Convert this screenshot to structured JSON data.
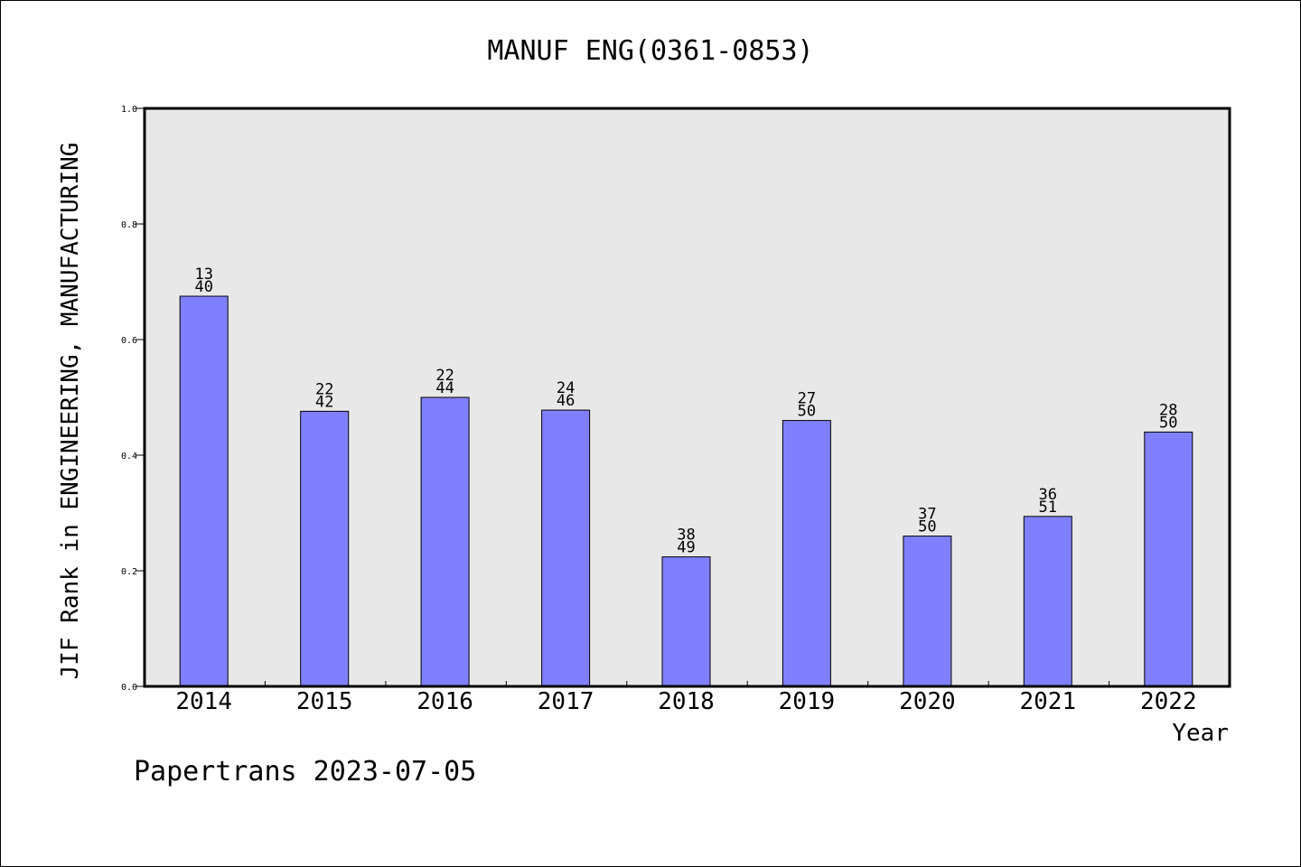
{
  "chart_data": {
    "type": "bar",
    "title": "MANUF ENG(0361-0853)",
    "xlabel": "Year",
    "ylabel": "JIF Rank in ENGINEERING, MANUFACTURING",
    "footer": "Papertrans 2023-07-05",
    "categories": [
      "2014",
      "2015",
      "2016",
      "2017",
      "2018",
      "2019",
      "2020",
      "2021",
      "2022"
    ],
    "values": [
      0.675,
      0.476,
      0.5,
      0.478,
      0.224,
      0.46,
      0.26,
      0.294,
      0.44
    ],
    "label_top": [
      "13",
      "22",
      "22",
      "24",
      "38",
      "27",
      "37",
      "36",
      "28"
    ],
    "label_bottom": [
      "40",
      "42",
      "44",
      "46",
      "49",
      "50",
      "50",
      "51",
      "50"
    ],
    "ylim": [
      0,
      1
    ],
    "yticks": [
      "0.0",
      "0.2",
      "0.4",
      "0.6",
      "0.8",
      "1.0"
    ],
    "grid": false,
    "bar_color": "#8080ff",
    "plot_background": "#e8e8e8"
  }
}
